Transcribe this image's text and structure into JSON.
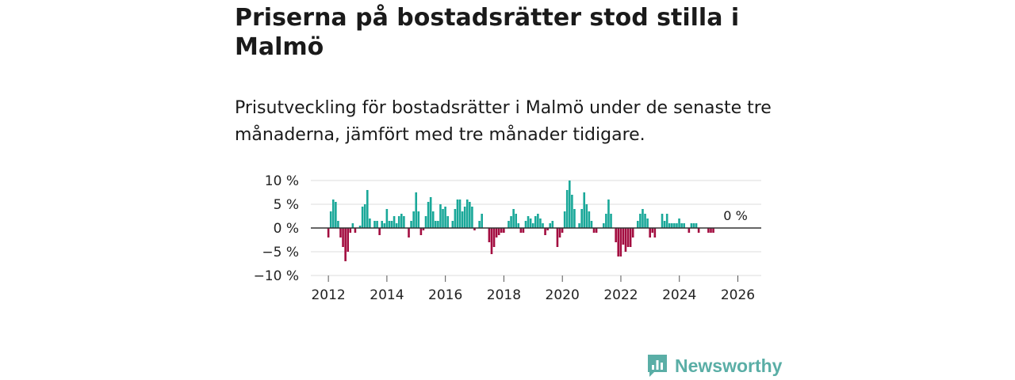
{
  "title": "Priserna på bostadsrätter stod stilla i Malmö",
  "subtitle": "Prisutveckling för bostadsrätter i Malmö under de senaste tre månaderna, jämfört med tre månader tidigare.",
  "logo": {
    "text": "Newsworthy"
  },
  "colors": {
    "positive": "#1aa899",
    "negative": "#a30d40",
    "grid": "#dddddd",
    "zero": "#333333",
    "logo": "#5aaea6"
  },
  "chart_data": {
    "type": "bar",
    "title": "Priserna på bostadsrätter stod stilla i Malmö",
    "xlabel": "",
    "ylabel": "",
    "ylim": [
      -10,
      10
    ],
    "xlim": [
      2011.4,
      2026.8
    ],
    "yticks": [
      10,
      5,
      0,
      -5,
      -10
    ],
    "ytick_labels": [
      "10 %",
      "5 %",
      "0 %",
      "−5 %",
      "−10 %"
    ],
    "xticks": [
      2012,
      2014,
      2016,
      2018,
      2020,
      2022,
      2024,
      2026
    ],
    "xtick_labels": [
      "2012",
      "2014",
      "2016",
      "2018",
      "2020",
      "2022",
      "2024",
      "2026"
    ],
    "annotation": {
      "text": "0 %",
      "x": 2025.92,
      "y": 0
    },
    "start_year": 2012.0,
    "step_years": 0.0833,
    "values": [
      -2,
      3.5,
      6,
      5.5,
      1.5,
      -2,
      -4,
      -7,
      -5,
      -1,
      1,
      -1,
      0,
      0.5,
      4.5,
      5,
      8,
      2,
      0,
      1.5,
      1.5,
      -1.5,
      1.5,
      1,
      4,
      1.5,
      1.5,
      2.5,
      1,
      2.5,
      3,
      2.5,
      0,
      -2,
      1.5,
      3.5,
      7.5,
      3.5,
      -1.5,
      -0.5,
      2.5,
      5.5,
      6.5,
      3.5,
      1.5,
      1.5,
      5,
      4,
      4.5,
      2.5,
      0,
      1.5,
      4,
      6,
      6,
      3.5,
      4.5,
      6,
      5.5,
      4.5,
      -0.5,
      0,
      1.5,
      3,
      0,
      0,
      -3,
      -5.5,
      -4,
      -2,
      -1.5,
      -1,
      -1,
      0,
      1.5,
      2.5,
      4,
      3,
      1,
      -1,
      -1,
      1.5,
      2.5,
      2,
      1,
      2.5,
      3,
      2,
      1,
      -1.5,
      -0.5,
      1,
      1.5,
      0,
      -4,
      -2,
      -1,
      3.5,
      8,
      10,
      7,
      4,
      0,
      1,
      4,
      7.5,
      5,
      3.5,
      1.5,
      -1,
      -1,
      0,
      0,
      1,
      3,
      6,
      3,
      0,
      -3,
      -6,
      -6,
      -3.5,
      -5,
      -4,
      -4,
      -2,
      0,
      1.5,
      3,
      4,
      3,
      2,
      -2,
      -1,
      -2,
      0,
      0,
      3,
      1.5,
      3,
      1,
      1,
      1,
      1,
      2,
      1,
      1,
      0,
      -1,
      1,
      1,
      1,
      -1,
      0,
      0,
      0,
      -1,
      -1,
      -1
    ]
  }
}
